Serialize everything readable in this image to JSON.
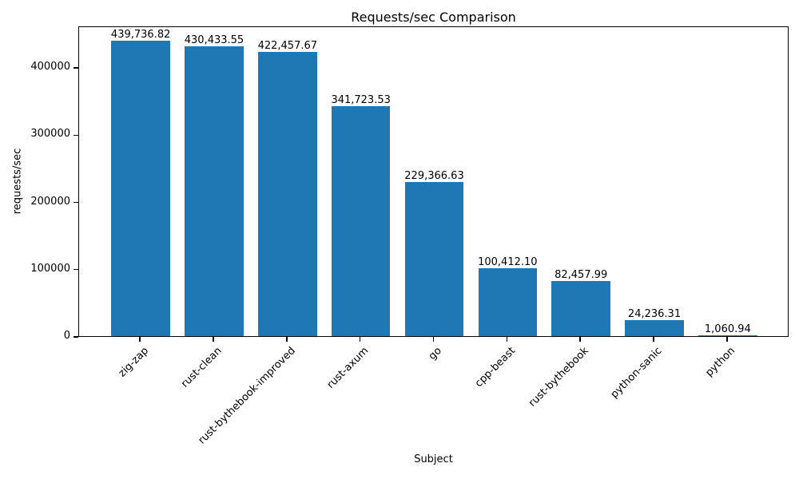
{
  "figure": {
    "background": "#ffffff"
  },
  "chart_data": {
    "type": "bar",
    "title": "Requests/sec Comparison",
    "xlabel": "Subject",
    "ylabel": "requests/sec",
    "categories": [
      "zig-zap",
      "rust-clean",
      "rust-bythebook-improved",
      "rust-axum",
      "go",
      "cpp-beast",
      "rust-bythebook",
      "python-sanic",
      "python"
    ],
    "values": [
      439736.82,
      430433.55,
      422457.67,
      341723.53,
      229366.63,
      100412.1,
      82457.99,
      24236.31,
      1060.94
    ],
    "bar_value_labels": [
      "439,736.82",
      "430,433.55",
      "422,457.67",
      "341,723.53",
      "229,366.63",
      "100,412.10",
      "82,457.99",
      "24,236.31",
      "1,060.94"
    ],
    "yticks": [
      0,
      100000,
      200000,
      300000,
      400000
    ],
    "ytick_labels": [
      "0",
      "100000",
      "200000",
      "300000",
      "400000"
    ],
    "ylim": [
      0,
      461723.66
    ],
    "bar_color": "#1f77b4",
    "axis_color": "#000000",
    "text_color": "#000000",
    "grid": false,
    "legend": null,
    "x_margin_units": 0.84,
    "bar_width_units": 0.8
  }
}
